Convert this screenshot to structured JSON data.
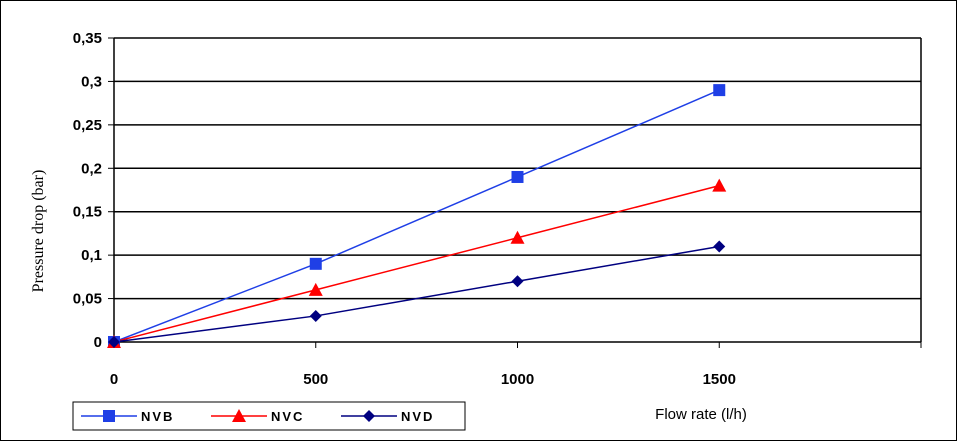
{
  "chart_data": {
    "type": "line",
    "x": [
      0,
      500,
      1000,
      1500
    ],
    "xlim": [
      0,
      2000
    ],
    "ylim": [
      0,
      0.35
    ],
    "x_ticks": [
      "0",
      "500",
      "1000",
      "1500"
    ],
    "y_ticks": [
      "0",
      "0,05",
      "0,1",
      "0,15",
      "0,2",
      "0,25",
      "0,3",
      "0,35"
    ],
    "xlabel": "Flow rate (l/h)",
    "ylabel": "Pressure drop (bar)",
    "grid": "horizontal",
    "legend_position": "bottom-left",
    "series": [
      {
        "name": "NVB",
        "values": [
          0,
          0.09,
          0.19,
          0.29
        ],
        "color": "#1f3fe6",
        "marker": "square"
      },
      {
        "name": "NVC",
        "values": [
          0,
          0.06,
          0.12,
          0.18
        ],
        "color": "#ff0000",
        "marker": "triangle"
      },
      {
        "name": "NVD",
        "values": [
          0,
          0.03,
          0.07,
          0.11
        ],
        "color": "#000080",
        "marker": "diamond"
      }
    ]
  }
}
